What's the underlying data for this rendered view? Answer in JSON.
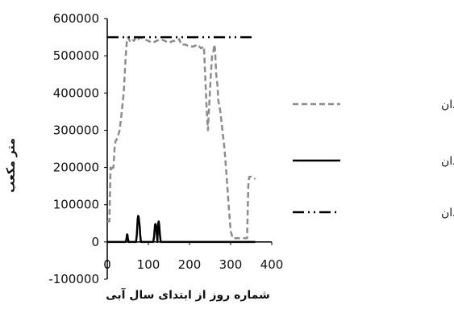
{
  "chart_data": {
    "type": "line",
    "title": "",
    "xlabel": "شماره روز از ابتدای سال آبی",
    "ylabel": "متر مکعب",
    "xlim": [
      0,
      400
    ],
    "ylim": [
      -100000,
      600000
    ],
    "x_ticks": [
      0,
      100,
      200,
      300,
      400
    ],
    "y_ticks": [
      -100000,
      0,
      100000,
      200000,
      300000,
      400000,
      500000,
      600000
    ],
    "grid": false,
    "legend_position": "right",
    "series": [
      {
        "name": "حجم آب بندان",
        "color": "#8c8c8c",
        "style": "dashed",
        "x": [
          0,
          5,
          8,
          10,
          13,
          15,
          18,
          20,
          25,
          30,
          35,
          40,
          45,
          48,
          50,
          55,
          60,
          65,
          70,
          75,
          80,
          90,
          100,
          110,
          120,
          130,
          140,
          150,
          160,
          170,
          175,
          180,
          190,
          200,
          210,
          220,
          228,
          235,
          240,
          242,
          245,
          247,
          250,
          252,
          255,
          258,
          260,
          262,
          265,
          268,
          270,
          275,
          280,
          285,
          290,
          295,
          300,
          305,
          310,
          320,
          330,
          340,
          343,
          345,
          350,
          355,
          360
        ],
        "values": [
          55000,
          55000,
          200000,
          190000,
          200000,
          200000,
          255000,
          270000,
          280000,
          300000,
          345000,
          400000,
          500000,
          545000,
          550000,
          540000,
          545000,
          540000,
          550000,
          545000,
          550000,
          545000,
          540000,
          535000,
          540000,
          545000,
          540000,
          535000,
          540000,
          540000,
          545000,
          530000,
          530000,
          525000,
          525000,
          530000,
          520000,
          525000,
          400000,
          350000,
          300000,
          350000,
          410000,
          450000,
          500000,
          510000,
          530000,
          520000,
          450000,
          420000,
          380000,
          350000,
          300000,
          250000,
          180000,
          100000,
          30000,
          10000,
          10000,
          10000,
          10000,
          10000,
          150000,
          175000,
          175000,
          170000,
          170000
        ]
      },
      {
        "name": "سریز از آب بندان",
        "color": "#000000",
        "style": "solid",
        "x": [
          0,
          45,
          47,
          48,
          49,
          50,
          52,
          70,
          72,
          73,
          74,
          75,
          76,
          77,
          78,
          79,
          80,
          82,
          112,
          114,
          115,
          116,
          117,
          118,
          119,
          120,
          122,
          123,
          124,
          125,
          126,
          127,
          128,
          130,
          360
        ],
        "values": [
          0,
          0,
          10000,
          20000,
          20000,
          10000,
          0,
          0,
          20000,
          40000,
          60000,
          70000,
          68000,
          60000,
          50000,
          40000,
          20000,
          0,
          0,
          15000,
          30000,
          45000,
          48000,
          46000,
          40000,
          30000,
          0,
          30000,
          50000,
          55000,
          48000,
          35000,
          20000,
          0,
          0
        ]
      },
      {
        "name": "بیشینه حجم آب بندان",
        "color": "#000000",
        "style": "dashdotdot",
        "x": [
          0,
          360
        ],
        "values": [
          550000,
          550000
        ]
      }
    ]
  }
}
